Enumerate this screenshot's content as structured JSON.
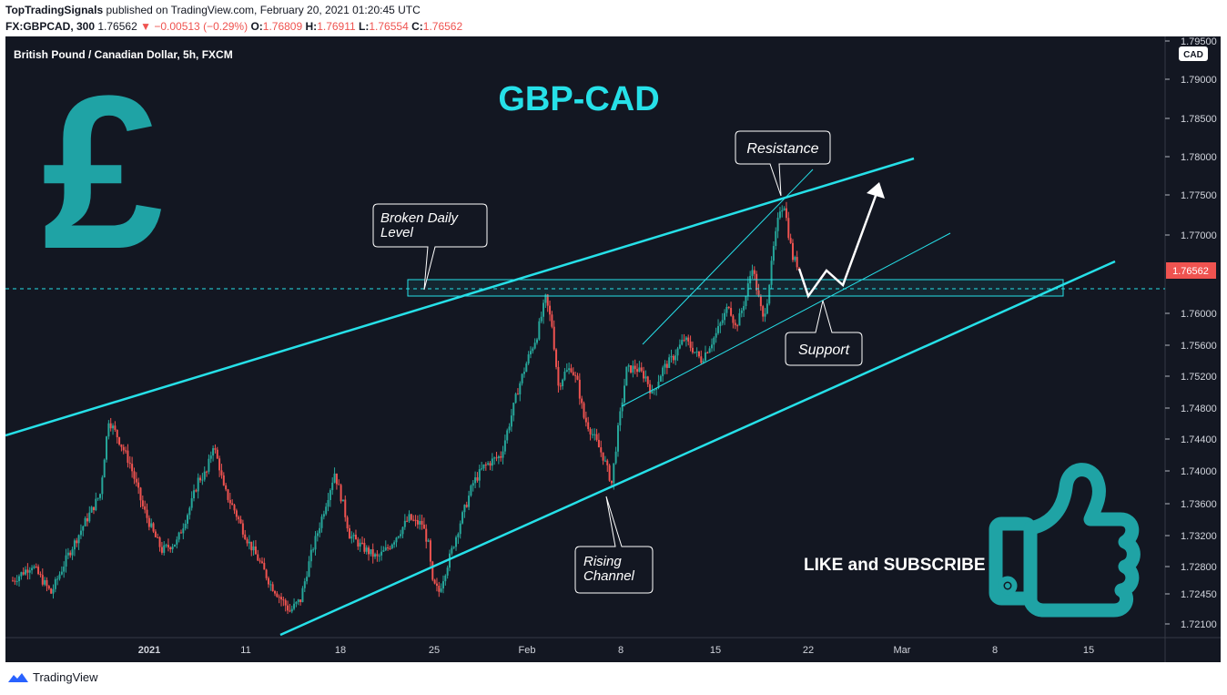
{
  "header": {
    "publisher": "TopTradingSignals",
    "published_text": "published on TradingView.com, February 20, 2021 01:20:45 UTC",
    "symbol": "FX:GBPCAD, 300",
    "last": "1.76562",
    "change": "−0.00513 (−0.29%)",
    "o_label": "O:",
    "o_val": "1.76809",
    "h_label": "H:",
    "h_val": "1.76911",
    "l_label": "L:",
    "l_val": "1.76554",
    "c_label": "C:",
    "c_val": "1.76562"
  },
  "chart_data": {
    "type": "candlestick",
    "title": "GBP-CAD",
    "subtitle": "British Pound / Canadian Dollar, 5h, FXCM",
    "currency": "CAD",
    "last_price_label": "1.76562",
    "y_ticks": [
      "1.79500",
      "1.79000",
      "1.78500",
      "1.78000",
      "1.77500",
      "1.77000",
      "1.76000",
      "1.75600",
      "1.75200",
      "1.74800",
      "1.74400",
      "1.74000",
      "1.73600",
      "1.73200",
      "1.72800",
      "1.72450",
      "1.72100"
    ],
    "x_ticks": [
      "2021",
      "11",
      "18",
      "25",
      "Feb",
      "8",
      "15",
      "22",
      "Mar",
      "8",
      "15"
    ],
    "ylim": [
      1.7195,
      1.7955
    ],
    "close_path": [
      [
        0,
        1.7262
      ],
      [
        9,
        1.7282
      ],
      [
        18,
        1.7246
      ],
      [
        26,
        1.7295
      ],
      [
        33,
        1.7332
      ],
      [
        41,
        1.7372
      ],
      [
        45,
        1.7465
      ],
      [
        49,
        1.7444
      ],
      [
        55,
        1.7409
      ],
      [
        61,
        1.7356
      ],
      [
        66,
        1.7323
      ],
      [
        70,
        1.7301
      ],
      [
        77,
        1.7312
      ],
      [
        84,
        1.7362
      ],
      [
        87,
        1.7389
      ],
      [
        91,
        1.7398
      ],
      [
        94,
        1.7433
      ],
      [
        97,
        1.7405
      ],
      [
        99,
        1.7378
      ],
      [
        104,
        1.7352
      ],
      [
        110,
        1.7315
      ],
      [
        116,
        1.7285
      ],
      [
        121,
        1.7257
      ],
      [
        126,
        1.7239
      ],
      [
        130,
        1.7225
      ],
      [
        135,
        1.7238
      ],
      [
        140,
        1.7296
      ],
      [
        146,
        1.7352
      ],
      [
        151,
        1.7398
      ],
      [
        155,
        1.7359
      ],
      [
        158,
        1.7321
      ],
      [
        164,
        1.7305
      ],
      [
        171,
        1.7291
      ],
      [
        176,
        1.7304
      ],
      [
        181,
        1.7323
      ],
      [
        186,
        1.7342
      ],
      [
        189,
        1.7336
      ],
      [
        192,
        1.7335
      ],
      [
        195,
        1.7308
      ],
      [
        197,
        1.7258
      ],
      [
        200,
        1.7248
      ],
      [
        205,
        1.7292
      ],
      [
        210,
        1.7337
      ],
      [
        216,
        1.7385
      ],
      [
        221,
        1.7405
      ],
      [
        225,
        1.7413
      ],
      [
        229,
        1.7419
      ],
      [
        233,
        1.746
      ],
      [
        237,
        1.7503
      ],
      [
        242,
        1.7545
      ],
      [
        246,
        1.7573
      ],
      [
        250,
        1.7619
      ],
      [
        253,
        1.7585
      ],
      [
        256,
        1.7508
      ],
      [
        259,
        1.7524
      ],
      [
        262,
        1.7531
      ],
      [
        265,
        1.7511
      ],
      [
        268,
        1.7468
      ],
      [
        273,
        1.7441
      ],
      [
        277,
        1.7418
      ],
      [
        281,
        1.7385
      ],
      [
        284,
        1.7452
      ],
      [
        288,
        1.7528
      ],
      [
        292,
        1.7531
      ],
      [
        297,
        1.7519
      ],
      [
        300,
        1.7497
      ],
      [
        305,
        1.7529
      ],
      [
        310,
        1.7545
      ],
      [
        315,
        1.7568
      ],
      [
        319,
        1.7555
      ],
      [
        323,
        1.7541
      ],
      [
        326,
        1.7555
      ],
      [
        330,
        1.7574
      ],
      [
        334,
        1.7598
      ],
      [
        336,
        1.7612
      ],
      [
        339,
        1.7583
      ],
      [
        341,
        1.7595
      ],
      [
        344,
        1.7622
      ],
      [
        347,
        1.7661
      ],
      [
        350,
        1.7618
      ],
      [
        352,
        1.7593
      ],
      [
        354,
        1.7618
      ],
      [
        357,
        1.7683
      ],
      [
        360,
        1.7733
      ],
      [
        362,
        1.7738
      ],
      [
        364,
        1.7702
      ],
      [
        366,
        1.7671
      ],
      [
        369,
        1.7659
      ]
    ],
    "annotations": {
      "broken_level": "Broken Daily\nLevel",
      "resistance": "Resistance",
      "support": "Support",
      "rising_channel": "Rising\nChannel"
    },
    "cta_text": "LIKE and SUBSCRIBE"
  },
  "colors": {
    "background": "#131722",
    "up": "#26a69a",
    "down": "#ef5350",
    "accent": "#26e0e8",
    "teal_icon": "#1fa3a5"
  },
  "icons": [
    "pound-sign-icon",
    "thumbs-up-icon",
    "tradingview-logo-icon"
  ],
  "footer": {
    "brand": "TradingView"
  }
}
